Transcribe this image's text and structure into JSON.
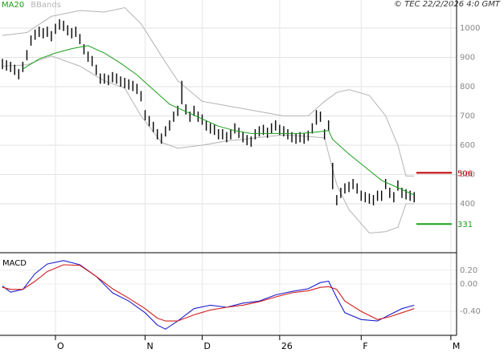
{
  "chart_data": [
    {
      "type": "ohlc",
      "note": "© TEC 22/2/2026 4:0 GMT",
      "xlim": [
        -0.6,
        111.4
      ],
      "xticks": [
        {
          "value": 13,
          "label": "O"
        },
        {
          "value": 35,
          "label": "N"
        },
        {
          "value": 49,
          "label": "D"
        },
        {
          "value": 68,
          "label": "26"
        },
        {
          "value": 88,
          "label": "F"
        },
        {
          "value": 110,
          "label": "M"
        }
      ],
      "ylim": [
        233,
        1096
      ],
      "yticks": [
        400,
        500,
        600,
        700,
        800,
        900,
        1000
      ],
      "grid": true,
      "bar_color": "#000000",
      "high": [
        895,
        890,
        885,
        875,
        860,
        885,
        925,
        975,
        995,
        1005,
        1000,
        1005,
        990,
        1015,
        1030,
        1025,
        1010,
        1000,
        1005,
        980,
        945,
        920,
        905,
        875,
        845,
        845,
        840,
        850,
        845,
        835,
        830,
        825,
        820,
        810,
        785,
        720,
        700,
        680,
        655,
        640,
        665,
        685,
        715,
        735,
        820,
        740,
        715,
        735,
        715,
        705,
        685,
        675,
        670,
        655,
        655,
        645,
        655,
        675,
        660,
        645,
        635,
        630,
        655,
        665,
        670,
        660,
        675,
        685,
        670,
        665,
        655,
        645,
        640,
        645,
        640,
        650,
        675,
        720,
        715,
        655,
        685,
        540,
        430,
        455,
        470,
        475,
        485,
        470,
        445,
        440,
        435,
        430,
        445,
        445,
        485,
        455,
        440,
        480,
        455,
        450,
        445,
        440
      ],
      "low": [
        860,
        855,
        850,
        840,
        825,
        850,
        890,
        940,
        960,
        970,
        965,
        970,
        955,
        980,
        995,
        990,
        975,
        965,
        970,
        945,
        910,
        885,
        870,
        840,
        810,
        810,
        805,
        815,
        810,
        800,
        795,
        790,
        785,
        775,
        750,
        685,
        665,
        645,
        620,
        605,
        630,
        650,
        680,
        700,
        740,
        705,
        680,
        700,
        680,
        670,
        650,
        640,
        635,
        620,
        620,
        610,
        620,
        640,
        625,
        610,
        600,
        595,
        620,
        630,
        635,
        625,
        640,
        650,
        635,
        630,
        620,
        610,
        605,
        610,
        605,
        615,
        640,
        670,
        680,
        620,
        650,
        450,
        395,
        420,
        435,
        440,
        450,
        435,
        410,
        405,
        400,
        395,
        410,
        410,
        450,
        420,
        405,
        445,
        420,
        415,
        410,
        405
      ],
      "series": [
        {
          "name": "MA20",
          "color": "#1aa01a",
          "x": [
            5,
            9,
            13,
            17,
            21,
            25,
            29,
            33,
            37,
            41,
            45,
            49,
            53,
            57,
            61,
            65,
            69,
            73,
            77,
            80,
            81,
            85,
            89,
            93,
            97,
            101
          ],
          "values": [
            860,
            895,
            915,
            930,
            940,
            915,
            880,
            840,
            790,
            740,
            715,
            690,
            665,
            650,
            640,
            640,
            640,
            640,
            645,
            650,
            620,
            570,
            525,
            480,
            455,
            430
          ]
        },
        {
          "name": "BBands",
          "color": "#b4b4b4",
          "x": [
            0,
            6,
            12,
            19,
            25,
            30,
            34,
            39,
            43,
            49,
            55,
            59,
            65,
            69,
            75,
            79,
            82,
            85,
            90,
            94,
            97,
            99,
            101
          ],
          "upper": [
            975,
            985,
            1040,
            1060,
            1055,
            1070,
            1015,
            905,
            820,
            750,
            735,
            725,
            710,
            700,
            700,
            750,
            780,
            790,
            770,
            700,
            600,
            495,
            495
          ],
          "lower": [
            870,
            875,
            905,
            870,
            820,
            795,
            700,
            610,
            590,
            600,
            615,
            620,
            630,
            635,
            630,
            625,
            465,
            380,
            300,
            305,
            320,
            400,
            400
          ]
        }
      ],
      "levels": [
        {
          "value": 506,
          "color": "#c00000"
        },
        {
          "value": 331,
          "color": "#1aa01a"
        }
      ]
    },
    {
      "type": "line",
      "title": "MACD",
      "ylim": [
        -0.75,
        0.42
      ],
      "yticks": [
        {
          "value": 0.2,
          "label": "0.20"
        },
        {
          "value": 0,
          "label": "0.00"
        },
        {
          "value": -0.4,
          "label": "-0.40"
        }
      ],
      "x": [
        0,
        2,
        5,
        8,
        11,
        15,
        19,
        23,
        27,
        31,
        35,
        38,
        40,
        43,
        47,
        51,
        55,
        59,
        63,
        67,
        71,
        75,
        78,
        80,
        82,
        84,
        88,
        92,
        95,
        98,
        101
      ],
      "series": [
        {
          "color": "#1f1fd0",
          "values": [
            -0.03,
            -0.12,
            -0.08,
            0.15,
            0.29,
            0.34,
            0.28,
            0.11,
            -0.13,
            -0.25,
            -0.42,
            -0.6,
            -0.66,
            -0.54,
            -0.36,
            -0.31,
            -0.34,
            -0.28,
            -0.25,
            -0.16,
            -0.11,
            -0.07,
            0.02,
            0.04,
            -0.2,
            -0.42,
            -0.52,
            -0.54,
            -0.45,
            -0.36,
            -0.31
          ]
        },
        {
          "color": "#d01f1f",
          "values": [
            -0.05,
            -0.08,
            -0.08,
            0.04,
            0.18,
            0.28,
            0.27,
            0.11,
            -0.07,
            -0.21,
            -0.36,
            -0.5,
            -0.54,
            -0.54,
            -0.45,
            -0.38,
            -0.34,
            -0.31,
            -0.26,
            -0.19,
            -0.13,
            -0.1,
            -0.05,
            -0.04,
            -0.08,
            -0.25,
            -0.4,
            -0.52,
            -0.48,
            -0.42,
            -0.36
          ]
        }
      ]
    }
  ]
}
